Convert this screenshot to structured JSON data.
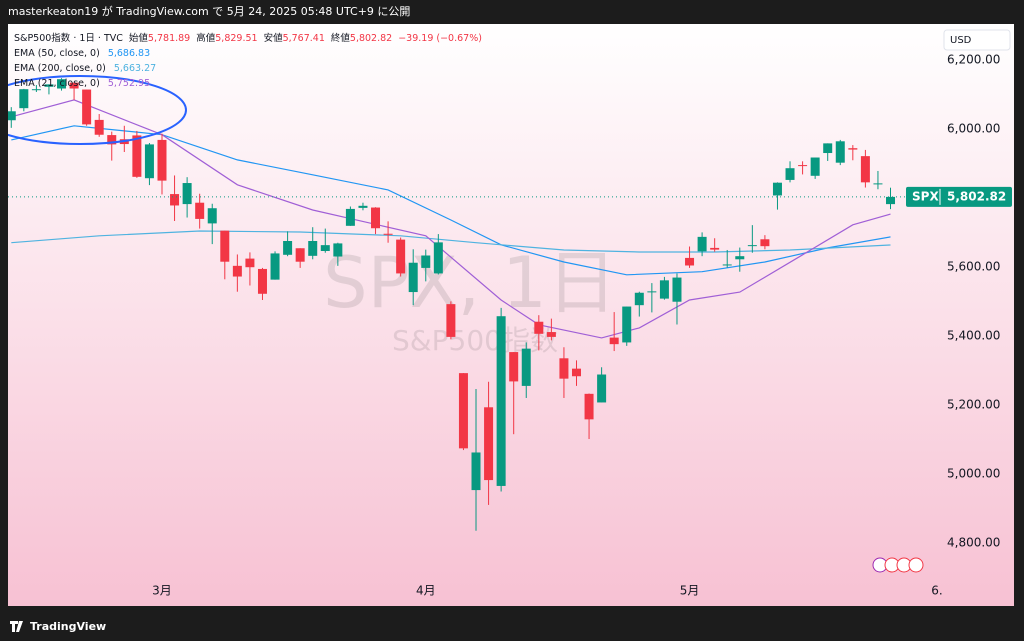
{
  "header": {
    "publish_note": "masterkeaton19 が TradingView.com で 5月 24, 2025 05:48 UTC+9 に公開"
  },
  "footer": {
    "brand": "TradingView"
  },
  "chart_data": {
    "type": "candlestick",
    "title": "S&P500指数 · 1日 · TVC",
    "ohlc_legend": [
      {
        "label": "始値",
        "value": "5,781.89"
      },
      {
        "label": "高値",
        "value": "5,829.51"
      },
      {
        "label": "安値",
        "value": "5,767.41"
      },
      {
        "label": "終値",
        "value": "5,802.82"
      }
    ],
    "change": "−39.19 (−0.67%)",
    "watermark": {
      "symbol": "SPX, 1日",
      "name": "S&P500指数"
    },
    "currency": "USD",
    "up_color": "#089981",
    "down_color": "#f23645",
    "open": [
      6025,
      6060,
      6115,
      6122,
      6117,
      6134,
      6114,
      6026,
      5982,
      5970,
      5981,
      5857,
      5968,
      5811,
      5782,
      5786,
      5726,
      5705,
      5603,
      5624,
      5594,
      5563,
      5635,
      5654,
      5632,
      5646,
      5630,
      5719,
      5771,
      5772,
      5696,
      5679,
      5527,
      5597,
      5581,
      5492,
      5292,
      4953,
      5193,
      4965,
      5353,
      5255,
      5441,
      5411,
      5335,
      5305,
      5232,
      5207,
      5395,
      5381,
      5489,
      5529,
      5508,
      5499,
      5626,
      5645,
      5655,
      5606,
      5622,
      5661,
      5680,
      5807,
      5852,
      5895,
      5864,
      5930,
      5902,
      5944,
      5921,
      5841,
      5781.89
    ],
    "high": [
      6063,
      6116,
      6127,
      6129,
      6147,
      6134,
      6114,
      6043,
      5992,
      6009,
      5994,
      5959,
      5986,
      5865,
      5860,
      5812,
      5783,
      5705,
      5636,
      5642,
      5597,
      5645,
      5703,
      5654,
      5715,
      5711,
      5670,
      5775,
      5786,
      5773,
      5732,
      5685,
      5651,
      5650,
      5695,
      5500,
      5292,
      5246,
      5267,
      5481,
      5353,
      5381,
      5460,
      5450,
      5367,
      5329,
      5233,
      5309,
      5469,
      5485,
      5528,
      5553,
      5571,
      5581,
      5659,
      5700,
      5683,
      5649,
      5656,
      5721,
      5692,
      5845,
      5906,
      5906,
      5917,
      5958,
      5968,
      5953,
      5939,
      5878,
      5829.51
    ],
    "low": [
      6003,
      6051,
      6107,
      6100,
      6111,
      6084,
      6009,
      5977,
      5908,
      5933,
      5858,
      5837,
      5810,
      5733,
      5743,
      5711,
      5666,
      5564,
      5528,
      5546,
      5504,
      5563,
      5631,
      5597,
      5622,
      5641,
      5603,
      5719,
      5764,
      5695,
      5670,
      5572,
      5489,
      5558,
      5578,
      5390,
      5069,
      4835,
      4910,
      4949,
      5115,
      5220,
      5358,
      5387,
      5220,
      5255,
      5101,
      5207,
      5356,
      5371,
      5456,
      5468,
      5505,
      5433,
      5597,
      5631,
      5644,
      5598,
      5586,
      5641,
      5651,
      5766,
      5845,
      5868,
      5855,
      5907,
      5895,
      5909,
      5830,
      5825,
      5767.41
    ],
    "close": [
      6051,
      6115,
      6115,
      6129,
      6144,
      6117,
      6013,
      5983,
      5955,
      5956,
      5861,
      5955,
      5850,
      5778,
      5843,
      5739,
      5770,
      5615,
      5572,
      5599,
      5522,
      5639,
      5675,
      5615,
      5675,
      5663,
      5668,
      5768,
      5777,
      5712,
      5693,
      5581,
      5612,
      5633,
      5671,
      5397,
      5074,
      5062,
      4982,
      5457,
      5268,
      5363,
      5406,
      5397,
      5276,
      5283,
      5158,
      5288,
      5376,
      5485,
      5525,
      5529,
      5561,
      5569,
      5604,
      5687,
      5650,
      5607,
      5631,
      5663,
      5660,
      5844,
      5886,
      5893,
      5917,
      5958,
      5964,
      5940,
      5845,
      5842,
      5802.82
    ],
    "indicators": [
      {
        "name": "EMA (50, close, 0)",
        "last_label": "5,686.83",
        "color": "#2196f3",
        "x": [
          0,
          5,
          12,
          18,
          24,
          30,
          35,
          39,
          44,
          49,
          55,
          60,
          65,
          70
        ],
        "values": [
          5968,
          6009,
          5983,
          5910,
          5867,
          5823,
          5736,
          5664,
          5614,
          5577,
          5586,
          5614,
          5655,
          5686.83
        ]
      },
      {
        "name": "EMA (200, close, 0)",
        "last_label": "5,663.27",
        "color": "#4fb3e0",
        "x": [
          0,
          7,
          15,
          23,
          31,
          37,
          44,
          50,
          56,
          62,
          70
        ],
        "values": [
          5670,
          5690,
          5704,
          5701,
          5690,
          5670,
          5649,
          5643,
          5643,
          5649,
          5663.27
        ]
      },
      {
        "name": "EMA (21, close, 0)",
        "last_label": "5,752.95",
        "color": "#a05fd6",
        "x": [
          0,
          5,
          12,
          18,
          24,
          33,
          39,
          42,
          47,
          50,
          54,
          58,
          63,
          67,
          70
        ],
        "values": [
          6035,
          6084,
          5983,
          5838,
          5765,
          5690,
          5504,
          5432,
          5394,
          5423,
          5504,
          5527,
          5635,
          5722,
          5752.95
        ]
      }
    ],
    "last_price": {
      "symbol": "SPX",
      "value": 5802.82,
      "label": "5,802.82"
    },
    "xlim": [
      -0.26,
      73.94
    ],
    "xticks": [
      {
        "value": 12,
        "label": "3月"
      },
      {
        "value": 33,
        "label": "4月"
      },
      {
        "value": 54,
        "label": "5月"
      },
      {
        "value": 73.7,
        "label": "6."
      }
    ],
    "ylim": [
      4617,
      6304
    ],
    "yticks": [
      {
        "value": 4800,
        "label": "4,800.00"
      },
      {
        "value": 5000,
        "label": "5,000.00"
      },
      {
        "value": 5200,
        "label": "5,200.00"
      },
      {
        "value": 5400,
        "label": "5,400.00"
      },
      {
        "value": 5600,
        "label": "5,600.00"
      },
      {
        "value": 5800,
        "label": "5,800.00"
      },
      {
        "value": 6000,
        "label": "6,000.00"
      },
      {
        "value": 6200,
        "label": "6,200.00"
      }
    ]
  }
}
